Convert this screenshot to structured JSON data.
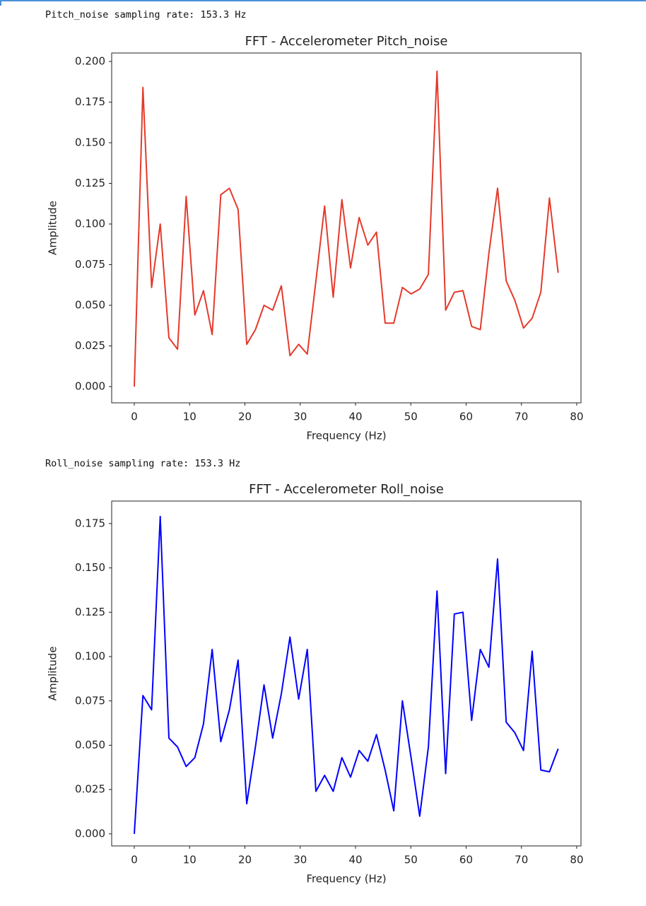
{
  "outputs": [
    "Pitch_noise sampling rate: 153.3 Hz",
    "Roll_noise sampling rate: 153.3 Hz"
  ],
  "chart_data": [
    {
      "type": "line",
      "title": "FFT - Accelerometer Pitch_noise",
      "x_label": "Frequency (Hz)",
      "y_label": "Amplitude",
      "color": "#e53a2b",
      "grid": false,
      "x": [
        0,
        1.56,
        3.13,
        4.69,
        6.26,
        7.82,
        9.38,
        10.95,
        12.51,
        14.08,
        15.64,
        17.2,
        18.77,
        20.33,
        21.9,
        23.46,
        25.02,
        26.59,
        28.15,
        29.72,
        31.28,
        32.84,
        34.41,
        35.97,
        37.54,
        39.1,
        40.66,
        42.23,
        43.79,
        45.36,
        46.92,
        48.48,
        50.05,
        51.61,
        53.18,
        54.74,
        56.3,
        57.87,
        59.43,
        61,
        62.56,
        64.12,
        65.69,
        67.25,
        68.82,
        70.38,
        71.94,
        73.51,
        75.07,
        76.64
      ],
      "values": [
        0,
        0.184,
        0.061,
        0.1,
        0.03,
        0.023,
        0.117,
        0.044,
        0.059,
        0.032,
        0.118,
        0.122,
        0.109,
        0.026,
        0.035,
        0.05,
        0.047,
        0.062,
        0.019,
        0.026,
        0.02,
        0.065,
        0.111,
        0.055,
        0.115,
        0.073,
        0.104,
        0.087,
        0.095,
        0.039,
        0.039,
        0.061,
        0.057,
        0.06,
        0.069,
        0.194,
        0.047,
        0.058,
        0.059,
        0.037,
        0.035,
        0.082,
        0.122,
        0.065,
        0.053,
        0.036,
        0.042,
        0.058,
        0.116,
        0.07
      ],
      "xlim": [
        -4.09,
        80.77
      ],
      "xticks": [
        0,
        10,
        20,
        30,
        40,
        50,
        60,
        70,
        80
      ],
      "ylim": [
        -0.01,
        0.2052
      ],
      "yticks": [
        {
          "value": 0,
          "label": "0.000"
        },
        {
          "value": 0.025,
          "label": "0.025"
        },
        {
          "value": 0.05,
          "label": "0.050"
        },
        {
          "value": 0.075,
          "label": "0.075"
        },
        {
          "value": 0.1,
          "label": "0.100"
        },
        {
          "value": 0.125,
          "label": "0.125"
        },
        {
          "value": 0.15,
          "label": "0.150"
        },
        {
          "value": 0.175,
          "label": "0.175"
        },
        {
          "value": 0.2,
          "label": "0.200"
        }
      ]
    },
    {
      "type": "line",
      "title": "FFT - Accelerometer Roll_noise",
      "x_label": "Frequency (Hz)",
      "y_label": "Amplitude",
      "color": "#0000ff",
      "grid": false,
      "x": [
        0,
        1.56,
        3.13,
        4.69,
        6.26,
        7.82,
        9.38,
        10.95,
        12.51,
        14.08,
        15.64,
        17.2,
        18.77,
        20.33,
        21.9,
        23.46,
        25.02,
        26.59,
        28.15,
        29.72,
        31.28,
        32.84,
        34.41,
        35.97,
        37.54,
        39.1,
        40.66,
        42.23,
        43.79,
        45.36,
        46.92,
        48.48,
        50.05,
        51.61,
        53.18,
        54.74,
        56.3,
        57.87,
        59.43,
        61,
        62.56,
        64.12,
        65.69,
        67.25,
        68.82,
        70.38,
        71.94,
        73.51,
        75.07,
        76.64
      ],
      "values": [
        0,
        0.078,
        0.07,
        0.179,
        0.054,
        0.049,
        0.038,
        0.043,
        0.062,
        0.104,
        0.052,
        0.07,
        0.098,
        0.017,
        0.049,
        0.084,
        0.054,
        0.079,
        0.111,
        0.076,
        0.104,
        0.024,
        0.033,
        0.024,
        0.043,
        0.032,
        0.047,
        0.041,
        0.056,
        0.036,
        0.013,
        0.075,
        0.043,
        0.01,
        0.049,
        0.137,
        0.034,
        0.124,
        0.125,
        0.064,
        0.104,
        0.094,
        0.155,
        0.063,
        0.057,
        0.047,
        0.103,
        0.036,
        0.035,
        0.048
      ],
      "xlim": [
        -4.09,
        80.77
      ],
      "xticks": [
        0,
        10,
        20,
        30,
        40,
        50,
        60,
        70,
        80
      ],
      "ylim": [
        -0.0068,
        0.1877
      ],
      "yticks": [
        {
          "value": 0,
          "label": "0.000"
        },
        {
          "value": 0.025,
          "label": "0.025"
        },
        {
          "value": 0.05,
          "label": "0.050"
        },
        {
          "value": 0.075,
          "label": "0.075"
        },
        {
          "value": 0.1,
          "label": "0.100"
        },
        {
          "value": 0.125,
          "label": "0.125"
        },
        {
          "value": 0.15,
          "label": "0.150"
        },
        {
          "value": 0.175,
          "label": "0.175"
        }
      ]
    }
  ]
}
